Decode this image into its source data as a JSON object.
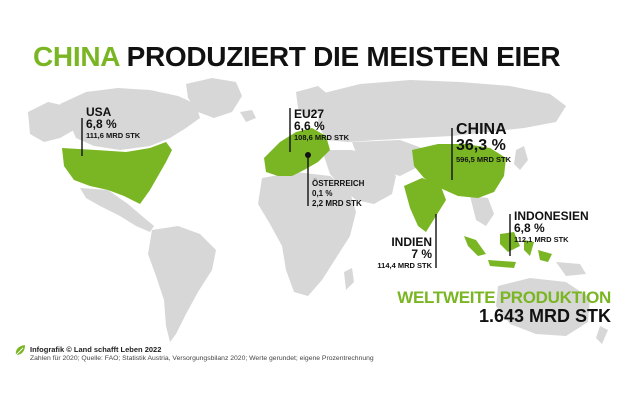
{
  "title": {
    "highlight": "CHINA",
    "rest": "PRODUZIERT DIE MEISTEN EIER"
  },
  "colors": {
    "accent": "#7ab623",
    "land": "#d7d7d7",
    "highlight_land": "#7ab623",
    "text": "#111111"
  },
  "labels": {
    "usa": {
      "name": "USA",
      "percent": "6,8 %",
      "value": "111,6 MRD STK"
    },
    "eu27": {
      "name": "EU27",
      "percent": "6,6 %",
      "value": "108,6 MRD STK"
    },
    "austria": {
      "name": "ÖSTERREICH",
      "percent": "0,1 %",
      "value": "2,2 MRD STK"
    },
    "china": {
      "name": "CHINA",
      "percent": "36,3 %",
      "value": "596,5 MRD STK"
    },
    "india": {
      "name": "INDIEN",
      "percent": "7 %",
      "value": "114,4 MRD STK"
    },
    "indonesia": {
      "name": "INDONESIEN",
      "percent": "6,8 %",
      "value": "112,1 MRD STK"
    }
  },
  "total": {
    "label": "WELTWEITE PRODUKTION",
    "value": "1.643 MRD STK"
  },
  "footer": {
    "credit": "Infografik © Land schafft Leben 2022",
    "source": "Zahlen für 2020; Quelle: FAO; Statistik Austria, Versorgungsbilanz 2020; Werte gerundet; eigene Prozentrechnung"
  },
  "icons": {
    "logo": "leaf-logo-icon"
  }
}
